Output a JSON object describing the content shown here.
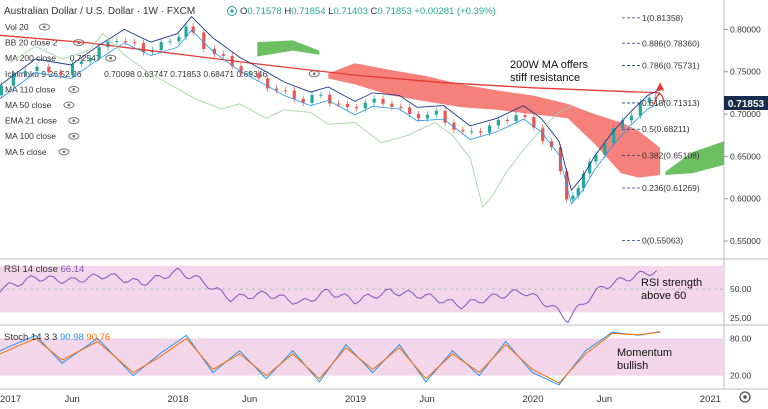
{
  "header": {
    "symbol": "Australian Dollar / U.S. Dollar",
    "interval": "1W",
    "source": "FXCM",
    "o_label": "O",
    "o": "0.71578",
    "h_label": "H",
    "h": "0.71854",
    "l_label": "L",
    "l": "0.71403",
    "c_label": "C",
    "c": "0.71853",
    "change": "+0.00281 (+0.39%)"
  },
  "legend": [
    {
      "label": "Vol 20",
      "value": ""
    },
    {
      "label": "BB 20 close 2",
      "value": ""
    },
    {
      "label": "MA 200 close",
      "value": "0.72547"
    },
    {
      "label": "Ichimoku 9 26 52 26",
      "value": "0.70098  0.63747  0.71853  0.68471  0.69346"
    },
    {
      "label": "MA 110 close",
      "value": ""
    },
    {
      "label": "MA 50 close",
      "value": ""
    },
    {
      "label": "EMA 21 close",
      "value": ""
    },
    {
      "label": "MA 100 close",
      "value": ""
    },
    {
      "label": "MA 5 close",
      "value": ""
    }
  ],
  "annotations": {
    "ma_note_line1": "200W MA offers",
    "ma_note_line2": "stiff resistance",
    "rsi_note_line1": "RSI strength",
    "rsi_note_line2": "above 60",
    "stoch_note_line1": "Momentum",
    "stoch_note_line2": "bullish"
  },
  "rsi": {
    "label": "RSI 14 close",
    "value": "66.14"
  },
  "stoch": {
    "label": "Stoch 14 3 3",
    "k": "90.98",
    "d": "90.76"
  },
  "price_tag": "0.71853",
  "colors": {
    "up": "#26a69a",
    "down": "#ef5350",
    "cloud_red": "#f4736b",
    "cloud_green": "#54b546",
    "ma200": "#e53935",
    "kijun": "#1e3a8a",
    "tenkan": "#2196f3",
    "chikou": "#a5d6a7",
    "rsi": "#7e57c2",
    "stoch_k": "#2196f3",
    "stoch_d": "#ff6d00",
    "band": "#f3d6e9",
    "tag_bg": "#1a2a4a",
    "arrow": "#e53935"
  },
  "chart_data": [
    {
      "type": "line",
      "title": "Australian Dollar / U.S. Dollar · 1W · FXCM",
      "x_ticks": [
        "2017",
        "Jun",
        "2018",
        "Jun",
        "2019",
        "Jun",
        "2020",
        "Jun",
        "2021"
      ],
      "ylim": [
        0.53,
        0.83
      ],
      "y_ticks": [
        "0.80000",
        "0.75000",
        "0.70000",
        "0.65000",
        "0.60000",
        "0.55000"
      ],
      "fib_levels": [
        {
          "label": "1(0.81358)",
          "value": 0.81358
        },
        {
          "label": "0.886(0.78360)",
          "value": 0.7836
        },
        {
          "label": "0.786(0.75731)",
          "value": 0.75731
        },
        {
          "label": "0.618(0.71313)",
          "value": 0.71313
        },
        {
          "label": "0.5(0.68211)",
          "value": 0.68211
        },
        {
          "label": "0.382(0.65108)",
          "value": 0.65108
        },
        {
          "label": "0.236(0.61269)",
          "value": 0.61269
        },
        {
          "label": "0(0.55063)",
          "value": 0.55063
        }
      ],
      "series": [
        {
          "name": "AUDUSD close",
          "values": [
            [
              2017.0,
              0.724
            ],
            [
              2017.2,
              0.755
            ],
            [
              2017.4,
              0.748
            ],
            [
              2017.55,
              0.77
            ],
            [
              2017.7,
              0.79
            ],
            [
              2017.85,
              0.775
            ],
            [
              2018.0,
              0.785
            ],
            [
              2018.08,
              0.805
            ],
            [
              2018.2,
              0.78
            ],
            [
              2018.35,
              0.757
            ],
            [
              2018.5,
              0.74
            ],
            [
              2018.6,
              0.728
            ],
            [
              2018.75,
              0.716
            ],
            [
              2018.85,
              0.722
            ],
            [
              2019.0,
              0.705
            ],
            [
              2019.1,
              0.715
            ],
            [
              2019.25,
              0.712
            ],
            [
              2019.35,
              0.698
            ],
            [
              2019.5,
              0.7
            ],
            [
              2019.65,
              0.676
            ],
            [
              2019.8,
              0.685
            ],
            [
              2019.95,
              0.7
            ],
            [
              2020.05,
              0.685
            ],
            [
              2020.15,
              0.658
            ],
            [
              2020.22,
              0.6
            ],
            [
              2020.28,
              0.615
            ],
            [
              2020.35,
              0.64
            ],
            [
              2020.45,
              0.668
            ],
            [
              2020.55,
              0.692
            ],
            [
              2020.65,
              0.712
            ],
            [
              2020.72,
              0.719
            ]
          ]
        },
        {
          "name": "MA 200",
          "values": [
            [
              2017.0,
              0.793
            ],
            [
              2017.5,
              0.784
            ],
            [
              2018.0,
              0.771
            ],
            [
              2018.5,
              0.758
            ],
            [
              2019.0,
              0.746
            ],
            [
              2019.5,
              0.737
            ],
            [
              2020.0,
              0.731
            ],
            [
              2020.72,
              0.725
            ]
          ]
        }
      ]
    },
    {
      "type": "line",
      "title": "RSI 14 close",
      "ylim": [
        20,
        75
      ],
      "y_ticks": [
        "50.00",
        "25.00"
      ],
      "band": [
        30,
        70
      ],
      "series": [
        {
          "name": "RSI 14 close",
          "values": [
            [
              2017.0,
              50
            ],
            [
              2017.2,
              60
            ],
            [
              2017.4,
              57
            ],
            [
              2017.6,
              62
            ],
            [
              2017.8,
              55
            ],
            [
              2018.0,
              65
            ],
            [
              2018.1,
              60
            ],
            [
              2018.3,
              42
            ],
            [
              2018.5,
              46
            ],
            [
              2018.7,
              38
            ],
            [
              2018.85,
              48
            ],
            [
              2019.0,
              40
            ],
            [
              2019.2,
              48
            ],
            [
              2019.4,
              44
            ],
            [
              2019.6,
              36
            ],
            [
              2019.8,
              44
            ],
            [
              2019.95,
              48
            ],
            [
              2020.1,
              36
            ],
            [
              2020.2,
              24
            ],
            [
              2020.3,
              40
            ],
            [
              2020.4,
              52
            ],
            [
              2020.55,
              60
            ],
            [
              2020.7,
              66
            ]
          ]
        }
      ]
    },
    {
      "type": "line",
      "title": "Stoch 14 3 3",
      "ylim": [
        0,
        100
      ],
      "y_ticks": [
        "80.00",
        "20.00"
      ],
      "band": [
        20,
        80
      ],
      "series": [
        {
          "name": "%K",
          "values": [
            [
              2017.0,
              60
            ],
            [
              2017.2,
              85
            ],
            [
              2017.35,
              40
            ],
            [
              2017.55,
              80
            ],
            [
              2017.75,
              20
            ],
            [
              2017.9,
              55
            ],
            [
              2018.05,
              85
            ],
            [
              2018.2,
              25
            ],
            [
              2018.35,
              60
            ],
            [
              2018.5,
              15
            ],
            [
              2018.65,
              60
            ],
            [
              2018.8,
              10
            ],
            [
              2018.95,
              70
            ],
            [
              2019.1,
              25
            ],
            [
              2019.25,
              70
            ],
            [
              2019.4,
              10
            ],
            [
              2019.55,
              60
            ],
            [
              2019.7,
              20
            ],
            [
              2019.85,
              75
            ],
            [
              2020.0,
              25
            ],
            [
              2020.15,
              5
            ],
            [
              2020.3,
              60
            ],
            [
              2020.45,
              90
            ],
            [
              2020.6,
              85
            ],
            [
              2020.72,
              91
            ]
          ]
        },
        {
          "name": "%D",
          "values": [
            [
              2017.0,
              55
            ],
            [
              2017.2,
              80
            ],
            [
              2017.35,
              45
            ],
            [
              2017.55,
              75
            ],
            [
              2017.75,
              25
            ],
            [
              2017.9,
              50
            ],
            [
              2018.05,
              80
            ],
            [
              2018.2,
              30
            ],
            [
              2018.35,
              55
            ],
            [
              2018.5,
              20
            ],
            [
              2018.65,
              55
            ],
            [
              2018.8,
              15
            ],
            [
              2018.95,
              65
            ],
            [
              2019.1,
              30
            ],
            [
              2019.25,
              65
            ],
            [
              2019.4,
              15
            ],
            [
              2019.55,
              55
            ],
            [
              2019.7,
              25
            ],
            [
              2019.85,
              70
            ],
            [
              2020.0,
              30
            ],
            [
              2020.15,
              8
            ],
            [
              2020.3,
              55
            ],
            [
              2020.45,
              88
            ],
            [
              2020.6,
              86
            ],
            [
              2020.72,
              90
            ]
          ]
        }
      ]
    }
  ]
}
